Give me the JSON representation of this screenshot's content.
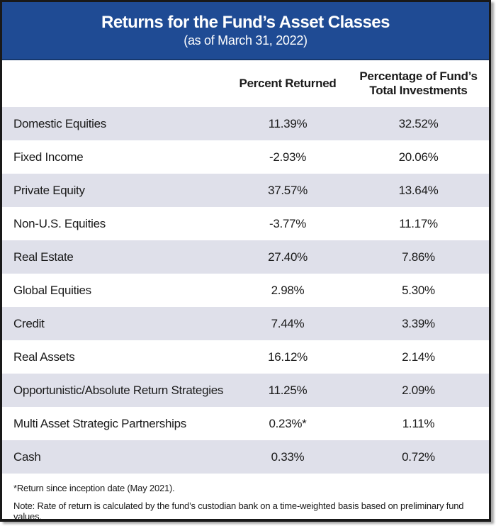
{
  "header": {
    "title": "Returns for the Fund’s Asset Classes",
    "subtitle": "(as of March 31, 2022)"
  },
  "columns": {
    "asset_class": "",
    "percent_returned": "Percent Returned",
    "fund_percentage": "Percentage of Fund’s Total Investments"
  },
  "table": {
    "rows": [
      {
        "label": "Domestic Equities",
        "percent_returned": "11.39%",
        "fund_percentage": "32.52%"
      },
      {
        "label": "Fixed Income",
        "percent_returned": "-2.93%",
        "fund_percentage": "20.06%"
      },
      {
        "label": "Private Equity",
        "percent_returned": "37.57%",
        "fund_percentage": "13.64%"
      },
      {
        "label": "Non-U.S. Equities",
        "percent_returned": "-3.77%",
        "fund_percentage": "11.17%"
      },
      {
        "label": "Real Estate",
        "percent_returned": "27.40%",
        "fund_percentage": "7.86%"
      },
      {
        "label": "Global Equities",
        "percent_returned": "2.98%",
        "fund_percentage": "5.30%"
      },
      {
        "label": "Credit",
        "percent_returned": "7.44%",
        "fund_percentage": "3.39%"
      },
      {
        "label": "Real Assets",
        "percent_returned": "16.12%",
        "fund_percentage": "2.14%"
      },
      {
        "label": "Opportunistic/Absolute Return Strategies",
        "percent_returned": "11.25%",
        "fund_percentage": "2.09%"
      },
      {
        "label": "Multi Asset Strategic Partnerships",
        "percent_returned": "0.23%*",
        "fund_percentage": "1.11%"
      },
      {
        "label": "Cash",
        "percent_returned": "0.33%",
        "fund_percentage": "0.72%"
      }
    ]
  },
  "footer": {
    "footnote": "*Return since inception date (May 2021).",
    "note": "Note: Rate of return is calculated by the fund’s custodian bank on a time-weighted basis based on preliminary fund values."
  },
  "colors": {
    "header_bg": "#1f4b94",
    "header_text": "#ffffff",
    "row_shaded": "#dfe0ea",
    "border": "#191919",
    "body_text": "#1a1a1a"
  },
  "chart_data": {
    "type": "table",
    "title": "Returns for the Fund’s Asset Classes",
    "subtitle": "(as of March 31, 2022)",
    "columns": [
      "",
      "Percent Returned",
      "Percentage of Fund’s Total Investments"
    ],
    "rows": [
      [
        "Domestic Equities",
        "11.39%",
        "32.52%"
      ],
      [
        "Fixed Income",
        "-2.93%",
        "20.06%"
      ],
      [
        "Private Equity",
        "37.57%",
        "13.64%"
      ],
      [
        "Non-U.S. Equities",
        "-3.77%",
        "11.17%"
      ],
      [
        "Real Estate",
        "27.40%",
        "7.86%"
      ],
      [
        "Global Equities",
        "2.98%",
        "5.30%"
      ],
      [
        "Credit",
        "7.44%",
        "3.39%"
      ],
      [
        "Real Assets",
        "16.12%",
        "2.14%"
      ],
      [
        "Opportunistic/Absolute Return Strategies",
        "11.25%",
        "2.09%"
      ],
      [
        "Multi Asset Strategic Partnerships",
        "0.23%*",
        "1.11%"
      ],
      [
        "Cash",
        "0.33%",
        "0.72%"
      ]
    ],
    "percent_returned_values": [
      11.39,
      -2.93,
      37.57,
      -3.77,
      27.4,
      2.98,
      7.44,
      16.12,
      11.25,
      0.23,
      0.33
    ],
    "fund_percentage_values": [
      32.52,
      20.06,
      13.64,
      11.17,
      7.86,
      5.3,
      3.39,
      2.14,
      2.09,
      1.11,
      0.72
    ],
    "footnotes": [
      "*Return since inception date (May 2021).",
      "Note: Rate of return is calculated by the fund’s custodian bank on a time-weighted basis based on preliminary fund values."
    ],
    "layout": {
      "striped_rows": true,
      "stripe_color": "#dfe0ea",
      "header_banner_color": "#1f4b94"
    }
  }
}
